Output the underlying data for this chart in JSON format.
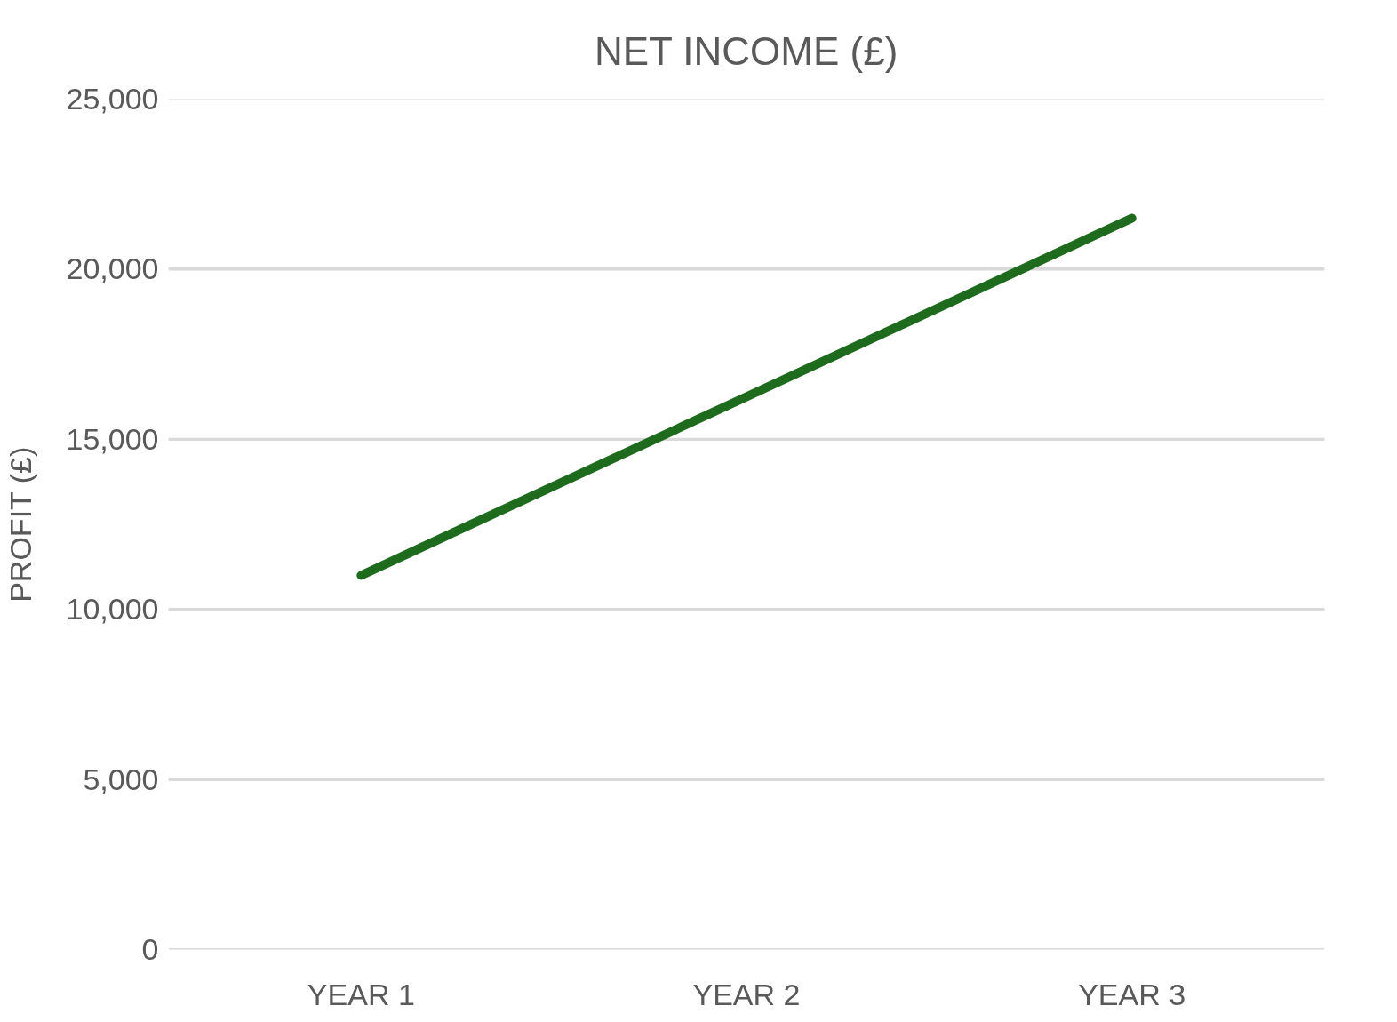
{
  "chart_data": {
    "type": "line",
    "title": "NET INCOME (£)",
    "ylabel": "PROFIT (£)",
    "categories": [
      "YEAR 1",
      "YEAR 2",
      "YEAR 3"
    ],
    "series": [
      {
        "color": "#1e6b1e",
        "values": [
          11000,
          16250,
          21500
        ]
      }
    ],
    "ylim": [
      0,
      25000
    ],
    "yticks": [
      {
        "value": 0,
        "label": "0"
      },
      {
        "value": 5000,
        "label": "5,000"
      },
      {
        "value": 10000,
        "label": "10,000"
      },
      {
        "value": 15000,
        "label": "15,000"
      },
      {
        "value": 20000,
        "label": "20,000"
      },
      {
        "value": 25000,
        "label": "25,000"
      }
    ],
    "grid": "y",
    "marker": "none",
    "line_style": "solid"
  }
}
